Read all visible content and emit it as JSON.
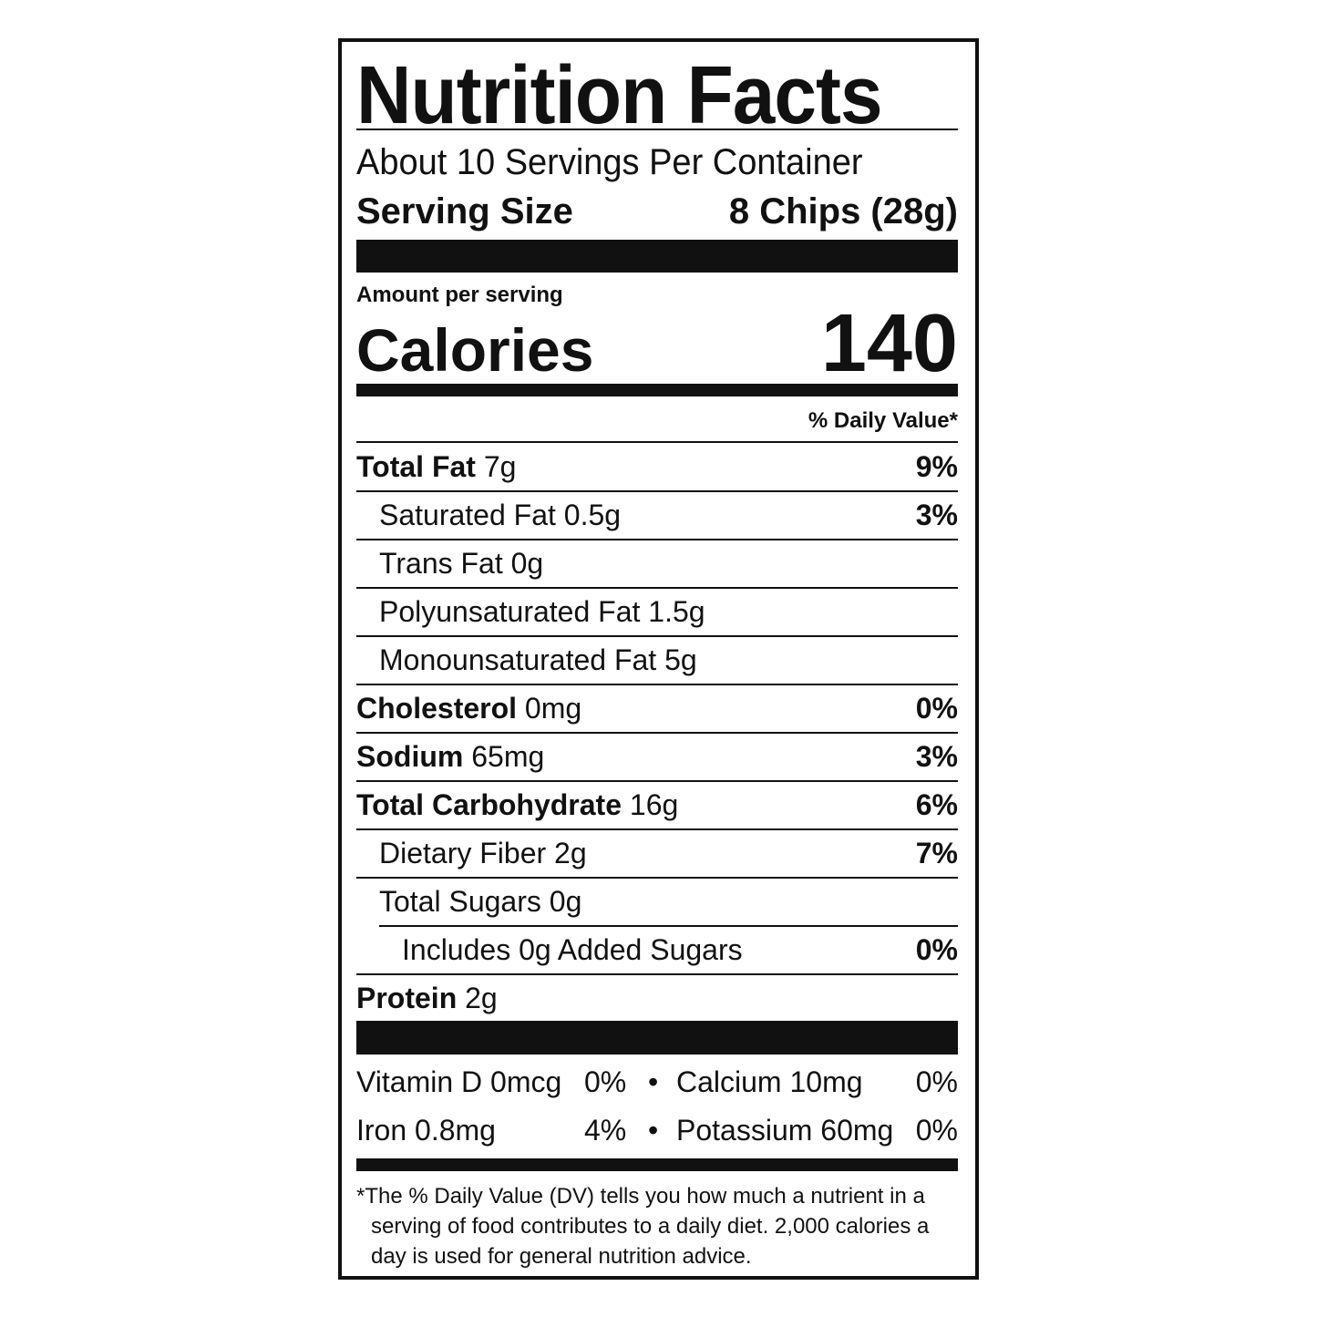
{
  "title": "Nutrition Facts",
  "servings_per_container": "About 10 Servings Per Container",
  "serving_size": {
    "label": "Serving Size",
    "value": "8 Chips (28g)"
  },
  "amount_per_serving": "Amount per serving",
  "calories": {
    "label": "Calories",
    "value": "140"
  },
  "daily_value_header": "% Daily Value*",
  "nutrients": [
    {
      "name": "Total Fat",
      "amount": "7g",
      "dv": "9%",
      "bold": true,
      "indent": 0
    },
    {
      "name": "Saturated Fat",
      "amount": "0.5g",
      "dv": "3%",
      "bold": false,
      "indent": 1
    },
    {
      "name": "Trans Fat",
      "amount": "0g",
      "dv": "",
      "bold": false,
      "indent": 1
    },
    {
      "name": "Polyunsaturated Fat",
      "amount": "1.5g",
      "dv": "",
      "bold": false,
      "indent": 1
    },
    {
      "name": "Monounsaturated Fat",
      "amount": "5g",
      "dv": "",
      "bold": false,
      "indent": 1
    },
    {
      "name": "Cholesterol",
      "amount": "0mg",
      "dv": "0%",
      "bold": true,
      "indent": 0
    },
    {
      "name": "Sodium",
      "amount": "65mg",
      "dv": "3%",
      "bold": true,
      "indent": 0
    },
    {
      "name": "Total Carbohydrate",
      "amount": "16g",
      "dv": "6%",
      "bold": true,
      "indent": 0
    },
    {
      "name": "Dietary Fiber",
      "amount": "2g",
      "dv": "7%",
      "bold": false,
      "indent": 1
    },
    {
      "name": "Total Sugars",
      "amount": "0g",
      "dv": "",
      "bold": false,
      "indent": 1
    },
    {
      "name": "Includes 0g Added Sugars",
      "amount": "",
      "dv": "0%",
      "bold": false,
      "indent": 2
    },
    {
      "name": "Protein",
      "amount": "2g",
      "dv": "",
      "bold": true,
      "indent": 0
    }
  ],
  "vitamins": [
    {
      "left": "Vitamin D 0mcg",
      "left_dv": "0%",
      "bullet": "•",
      "right": "Calcium 10mg",
      "right_dv": "0%"
    },
    {
      "left": "Iron 0.8mg",
      "left_dv": "4%",
      "bullet": "•",
      "right": "Potassium 60mg",
      "right_dv": "0%"
    }
  ],
  "footnote": [
    "*The % Daily Value (DV) tells you how much a nutrient in a",
    "serving of food contributes to a daily diet. 2,000 calories a",
    "day is used for general nutrition advice."
  ]
}
